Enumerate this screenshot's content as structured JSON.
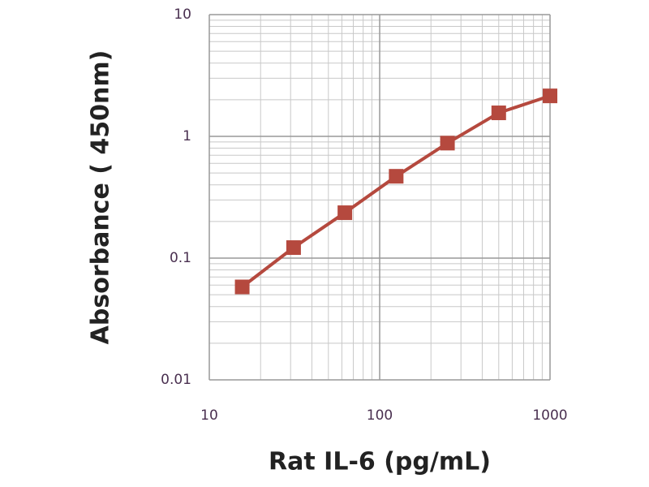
{
  "chart_data": {
    "type": "line",
    "xlabel": "Rat IL-6 (pg/mL)",
    "ylabel": "Absorbance ( 450nm)",
    "x": [
      15.6,
      31.25,
      62.5,
      125,
      250,
      500,
      1000
    ],
    "series": [
      {
        "color": "#b5493e",
        "values": [
          0.058,
          0.122,
          0.236,
          0.47,
          0.88,
          1.56,
          2.15
        ]
      }
    ],
    "xscale": "log",
    "yscale": "log",
    "xlim": [
      10,
      1000
    ],
    "ylim": [
      0.01,
      10
    ],
    "xticks": [
      10,
      100,
      1000
    ],
    "yticks": [
      0.01,
      0.1,
      1,
      10
    ],
    "xminorticks": [
      20,
      30,
      40,
      50,
      60,
      70,
      80,
      90,
      200,
      300,
      400,
      500,
      600,
      700,
      800,
      900
    ],
    "yminorticks": [
      0.02,
      0.03,
      0.04,
      0.05,
      0.06,
      0.07,
      0.08,
      0.09,
      0.2,
      0.3,
      0.4,
      0.5,
      0.6,
      0.7,
      0.8,
      0.9,
      2,
      3,
      4,
      5,
      6,
      7,
      8,
      9
    ],
    "grid": true
  }
}
